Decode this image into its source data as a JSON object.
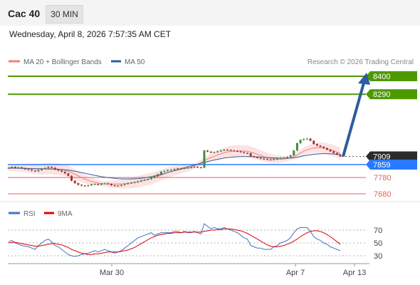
{
  "header": {
    "instrument": "Cac 40",
    "timeframe": "30 MIN",
    "datetime": "Wednesday, April 8, 2026 7:57:35 AM CET"
  },
  "colors": {
    "bollinger": "#f08080",
    "ma50": "#2d5f9e",
    "resistance": "#4c9a00",
    "support": "#e86060",
    "pivot": "#2979ff",
    "last": "#2b2b2b",
    "arrow": "#2e5c9e",
    "rsi": "#4472c4",
    "rsi_ma": "#e00000",
    "candle_up": "#3d8f3d",
    "candle_down": "#b03030"
  },
  "chart_data": [
    {
      "type": "candlestick",
      "legend": [
        {
          "name": "MA 20 + Bollinger Bands",
          "color": "#f08080"
        },
        {
          "name": "MA 50",
          "color": "#2d5f9e"
        }
      ],
      "watermark": "Research © 2026 Trading Central",
      "ylim": [
        7645,
        8420
      ],
      "levels": [
        {
          "value": 8400,
          "label": "8400",
          "kind": "resistance"
        },
        {
          "value": 8290,
          "label": "8290",
          "kind": "resistance"
        },
        {
          "value": 7909,
          "label": "7909",
          "kind": "last"
        },
        {
          "value": 7859,
          "label": "7859",
          "kind": "pivot"
        },
        {
          "value": 7780,
          "label": "7780",
          "kind": "support"
        },
        {
          "value": 7680,
          "label": "7680",
          "kind": "support"
        }
      ],
      "x_ticks": [
        "Mar 30",
        "Apr 7",
        "Apr 13"
      ],
      "close": [
        7840,
        7845,
        7838,
        7842,
        7836,
        7830,
        7828,
        7822,
        7818,
        7825,
        7832,
        7838,
        7845,
        7840,
        7828,
        7822,
        7815,
        7805,
        7790,
        7760,
        7745,
        7735,
        7730,
        7728,
        7732,
        7738,
        7740,
        7736,
        7742,
        7744,
        7740,
        7732,
        7728,
        7730,
        7734,
        7740,
        7745,
        7748,
        7752,
        7756,
        7762,
        7766,
        7770,
        7778,
        7788,
        7800,
        7815,
        7820,
        7825,
        7828,
        7832,
        7836,
        7835,
        7838,
        7840,
        7842,
        7845,
        7842,
        7840,
        7945,
        7938,
        7932,
        7935,
        7940,
        7945,
        7950,
        7948,
        7945,
        7942,
        7940,
        7935,
        7930,
        7928,
        7910,
        7905,
        7900,
        7895,
        7893,
        7890,
        7888,
        7892,
        7895,
        7900,
        7902,
        7905,
        7915,
        7945,
        7990,
        8010,
        8015,
        8018,
        8005,
        7985,
        7975,
        7968,
        7960,
        7950,
        7940,
        7930,
        7920,
        7909
      ],
      "ma20": [
        7835,
        7836,
        7837,
        7838,
        7837,
        7836,
        7835,
        7834,
        7833,
        7832,
        7832,
        7833,
        7834,
        7834,
        7833,
        7831,
        7828,
        7824,
        7818,
        7810,
        7800,
        7790,
        7780,
        7770,
        7762,
        7756,
        7750,
        7746,
        7743,
        7741,
        7740,
        7740,
        7740,
        7740,
        7740,
        7742,
        7744,
        7747,
        7750,
        7754,
        7758,
        7763,
        7768,
        7774,
        7780,
        7787,
        7795,
        7803,
        7810,
        7816,
        7821,
        7826,
        7830,
        7834,
        7837,
        7842,
        7850,
        7860,
        7870,
        7882,
        7893,
        7902,
        7910,
        7918,
        7925,
        7931,
        7936,
        7940,
        7942,
        7943,
        7943,
        7942,
        7940,
        7935,
        7929,
        7922,
        7915,
        7908,
        7902,
        7897,
        7894,
        7892,
        7892,
        7893,
        7896,
        7900,
        7908,
        7918,
        7930,
        7940,
        7950,
        7956,
        7960,
        7962,
        7962,
        7960,
        7956,
        7950,
        7944,
        7936,
        7928
      ],
      "ma50": [
        7838,
        7838,
        7837,
        7837,
        7836,
        7836,
        7835,
        7835,
        7834,
        7834,
        7833,
        7833,
        7832,
        7832,
        7831,
        7830,
        7829,
        7827,
        7825,
        7822,
        7818,
        7814,
        7810,
        7806,
        7801,
        7797,
        7793,
        7789,
        7785,
        7782,
        7779,
        7777,
        7775,
        7773,
        7772,
        7771,
        7771,
        7771,
        7772,
        7773,
        7775,
        7778,
        7781,
        7785,
        7789,
        7794,
        7799,
        7804,
        7810,
        7816,
        7822,
        7828,
        7834,
        7840,
        7845,
        7850,
        7856,
        7862,
        7867,
        7872,
        7877,
        7882,
        7887,
        7891,
        7895,
        7899,
        7902,
        7904,
        7906,
        7907,
        7908,
        7908,
        7908,
        7908,
        7907,
        7906,
        7905,
        7903,
        7902,
        7901,
        7900,
        7899,
        7898,
        7898,
        7898,
        7899,
        7901,
        7904,
        7908,
        7912,
        7916,
        7919,
        7922,
        7924,
        7925,
        7926,
        7926,
        7925,
        7924,
        7922,
        7920
      ]
    },
    {
      "type": "line",
      "legend": [
        {
          "name": "RSI",
          "color": "#4472c4"
        },
        {
          "name": "9MA",
          "color": "#e00000"
        }
      ],
      "ylim": [
        20,
        85
      ],
      "yticks": [
        70,
        50,
        30
      ],
      "rsi": [
        52,
        54,
        50,
        48,
        46,
        45,
        44,
        42,
        40,
        46,
        50,
        54,
        56,
        52,
        46,
        44,
        40,
        36,
        32,
        30,
        29,
        30,
        32,
        33,
        34,
        36,
        38,
        36,
        38,
        40,
        38,
        36,
        34,
        36,
        38,
        42,
        46,
        50,
        54,
        58,
        60,
        62,
        64,
        66,
        62,
        64,
        66,
        66,
        66,
        66,
        68,
        68,
        66,
        68,
        66,
        66,
        68,
        66,
        64,
        80,
        76,
        72,
        74,
        72,
        72,
        74,
        72,
        70,
        68,
        66,
        62,
        58,
        56,
        46,
        44,
        42,
        42,
        40,
        40,
        40,
        44,
        46,
        50,
        52,
        54,
        58,
        66,
        72,
        74,
        74,
        74,
        68,
        60,
        56,
        54,
        50,
        48,
        44,
        42,
        40,
        38
      ],
      "rsi_ma": [
        50,
        51,
        51,
        50,
        49,
        48,
        47,
        46,
        45,
        45,
        46,
        47,
        48,
        49,
        49,
        48,
        47,
        45,
        43,
        40,
        38,
        36,
        34,
        33,
        32,
        32,
        33,
        33,
        34,
        35,
        36,
        36,
        36,
        36,
        37,
        38,
        39,
        41,
        43,
        46,
        49,
        52,
        55,
        58,
        60,
        62,
        63,
        64,
        65,
        65,
        66,
        66,
        66,
        67,
        67,
        67,
        67,
        67,
        67,
        68,
        69,
        70,
        70,
        71,
        71,
        72,
        72,
        72,
        71,
        70,
        69,
        67,
        65,
        62,
        59,
        56,
        53,
        50,
        47,
        45,
        44,
        44,
        45,
        46,
        48,
        50,
        53,
        56,
        60,
        63,
        66,
        68,
        69,
        69,
        68,
        66,
        63,
        60,
        56,
        52,
        48
      ]
    }
  ]
}
